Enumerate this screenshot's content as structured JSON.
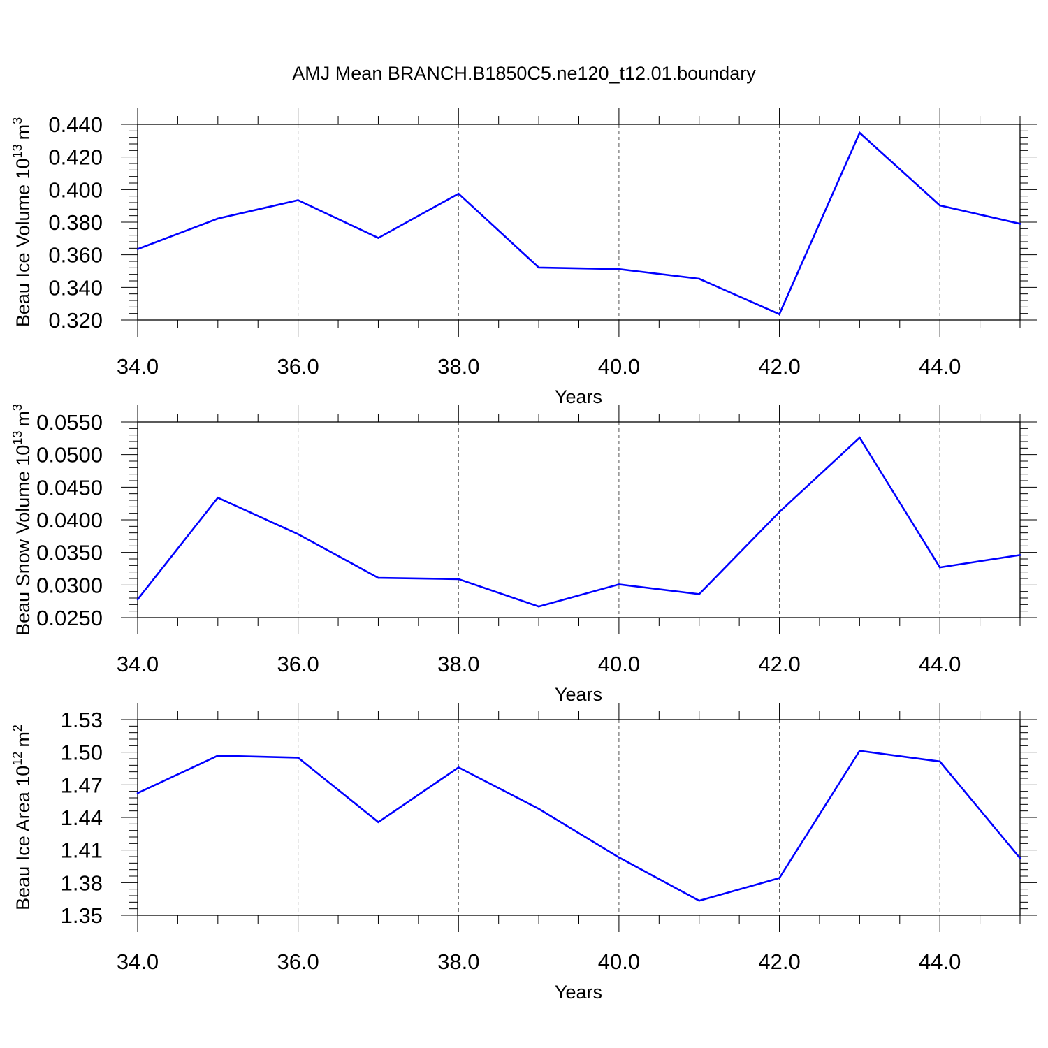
{
  "figure": {
    "title": "AMJ Mean BRANCH.B1850C5.ne120_t12.01.boundary"
  },
  "chart_data": [
    {
      "type": "line",
      "ylabel": "Beau Ice Volume 10",
      "ylabel_sup": "13",
      "ylabel_unit": "m",
      "ylabel_unit_sup": "3",
      "xlabel": "Years",
      "xlim": [
        34,
        45
      ],
      "ylim": [
        0.32,
        0.44
      ],
      "xticks": [
        34,
        36,
        38,
        40,
        42,
        44
      ],
      "xtick_labels": [
        "34.0",
        "36.0",
        "38.0",
        "40.0",
        "42.0",
        "44.0"
      ],
      "yticks": [
        0.32,
        0.34,
        0.36,
        0.38,
        0.4,
        0.42,
        0.44
      ],
      "ytick_labels": [
        "0.320",
        "0.340",
        "0.360",
        "0.380",
        "0.400",
        "0.420",
        "0.440"
      ],
      "grid": "vertical dashed at major x ticks",
      "color": "#0000ff",
      "x": [
        34,
        35,
        36,
        37,
        38,
        39,
        40,
        41,
        42,
        43,
        44,
        45
      ],
      "values": [
        0.3635,
        0.3822,
        0.3935,
        0.3703,
        0.3975,
        0.3522,
        0.3512,
        0.3453,
        0.3236,
        0.4348,
        0.3903,
        0.379
      ]
    },
    {
      "type": "line",
      "ylabel": "Beau Snow Volume 10",
      "ylabel_sup": "13",
      "ylabel_unit": "m",
      "ylabel_unit_sup": "3",
      "xlabel": "Years",
      "xlim": [
        34,
        45
      ],
      "ylim": [
        0.025,
        0.055
      ],
      "xticks": [
        34,
        36,
        38,
        40,
        42,
        44
      ],
      "xtick_labels": [
        "34.0",
        "36.0",
        "38.0",
        "40.0",
        "42.0",
        "44.0"
      ],
      "yticks": [
        0.025,
        0.03,
        0.035,
        0.04,
        0.045,
        0.05,
        0.055
      ],
      "ytick_labels": [
        "0.0250",
        "0.0300",
        "0.0350",
        "0.0400",
        "0.0450",
        "0.0500",
        "0.0550"
      ],
      "grid": "vertical dashed at major x ticks",
      "color": "#0000ff",
      "x": [
        34,
        35,
        36,
        37,
        38,
        39,
        40,
        41,
        42,
        43,
        44,
        45
      ],
      "values": [
        0.0278,
        0.0434,
        0.0378,
        0.0311,
        0.0309,
        0.0267,
        0.0301,
        0.0286,
        0.0412,
        0.0526,
        0.0327,
        0.0346
      ]
    },
    {
      "type": "line",
      "ylabel": "Beau Ice Area 10",
      "ylabel_sup": "12",
      "ylabel_unit": "m",
      "ylabel_unit_sup": "2",
      "xlabel": "Years",
      "xlim": [
        34,
        45
      ],
      "ylim": [
        1.35,
        1.53
      ],
      "xticks": [
        34,
        36,
        38,
        40,
        42,
        44
      ],
      "xtick_labels": [
        "34.0",
        "36.0",
        "38.0",
        "40.0",
        "42.0",
        "44.0"
      ],
      "yticks": [
        1.35,
        1.38,
        1.41,
        1.44,
        1.47,
        1.5,
        1.53
      ],
      "ytick_labels": [
        "1.35",
        "1.38",
        "1.41",
        "1.44",
        "1.47",
        "1.50",
        "1.53"
      ],
      "grid": "vertical dashed at major x ticks",
      "color": "#0000ff",
      "x": [
        34,
        35,
        36,
        37,
        38,
        39,
        40,
        41,
        42,
        43,
        44,
        45
      ],
      "values": [
        1.4624,
        1.4968,
        1.495,
        1.4357,
        1.486,
        1.448,
        1.4032,
        1.3634,
        1.3842,
        1.5013,
        1.4915,
        1.4025
      ]
    }
  ]
}
